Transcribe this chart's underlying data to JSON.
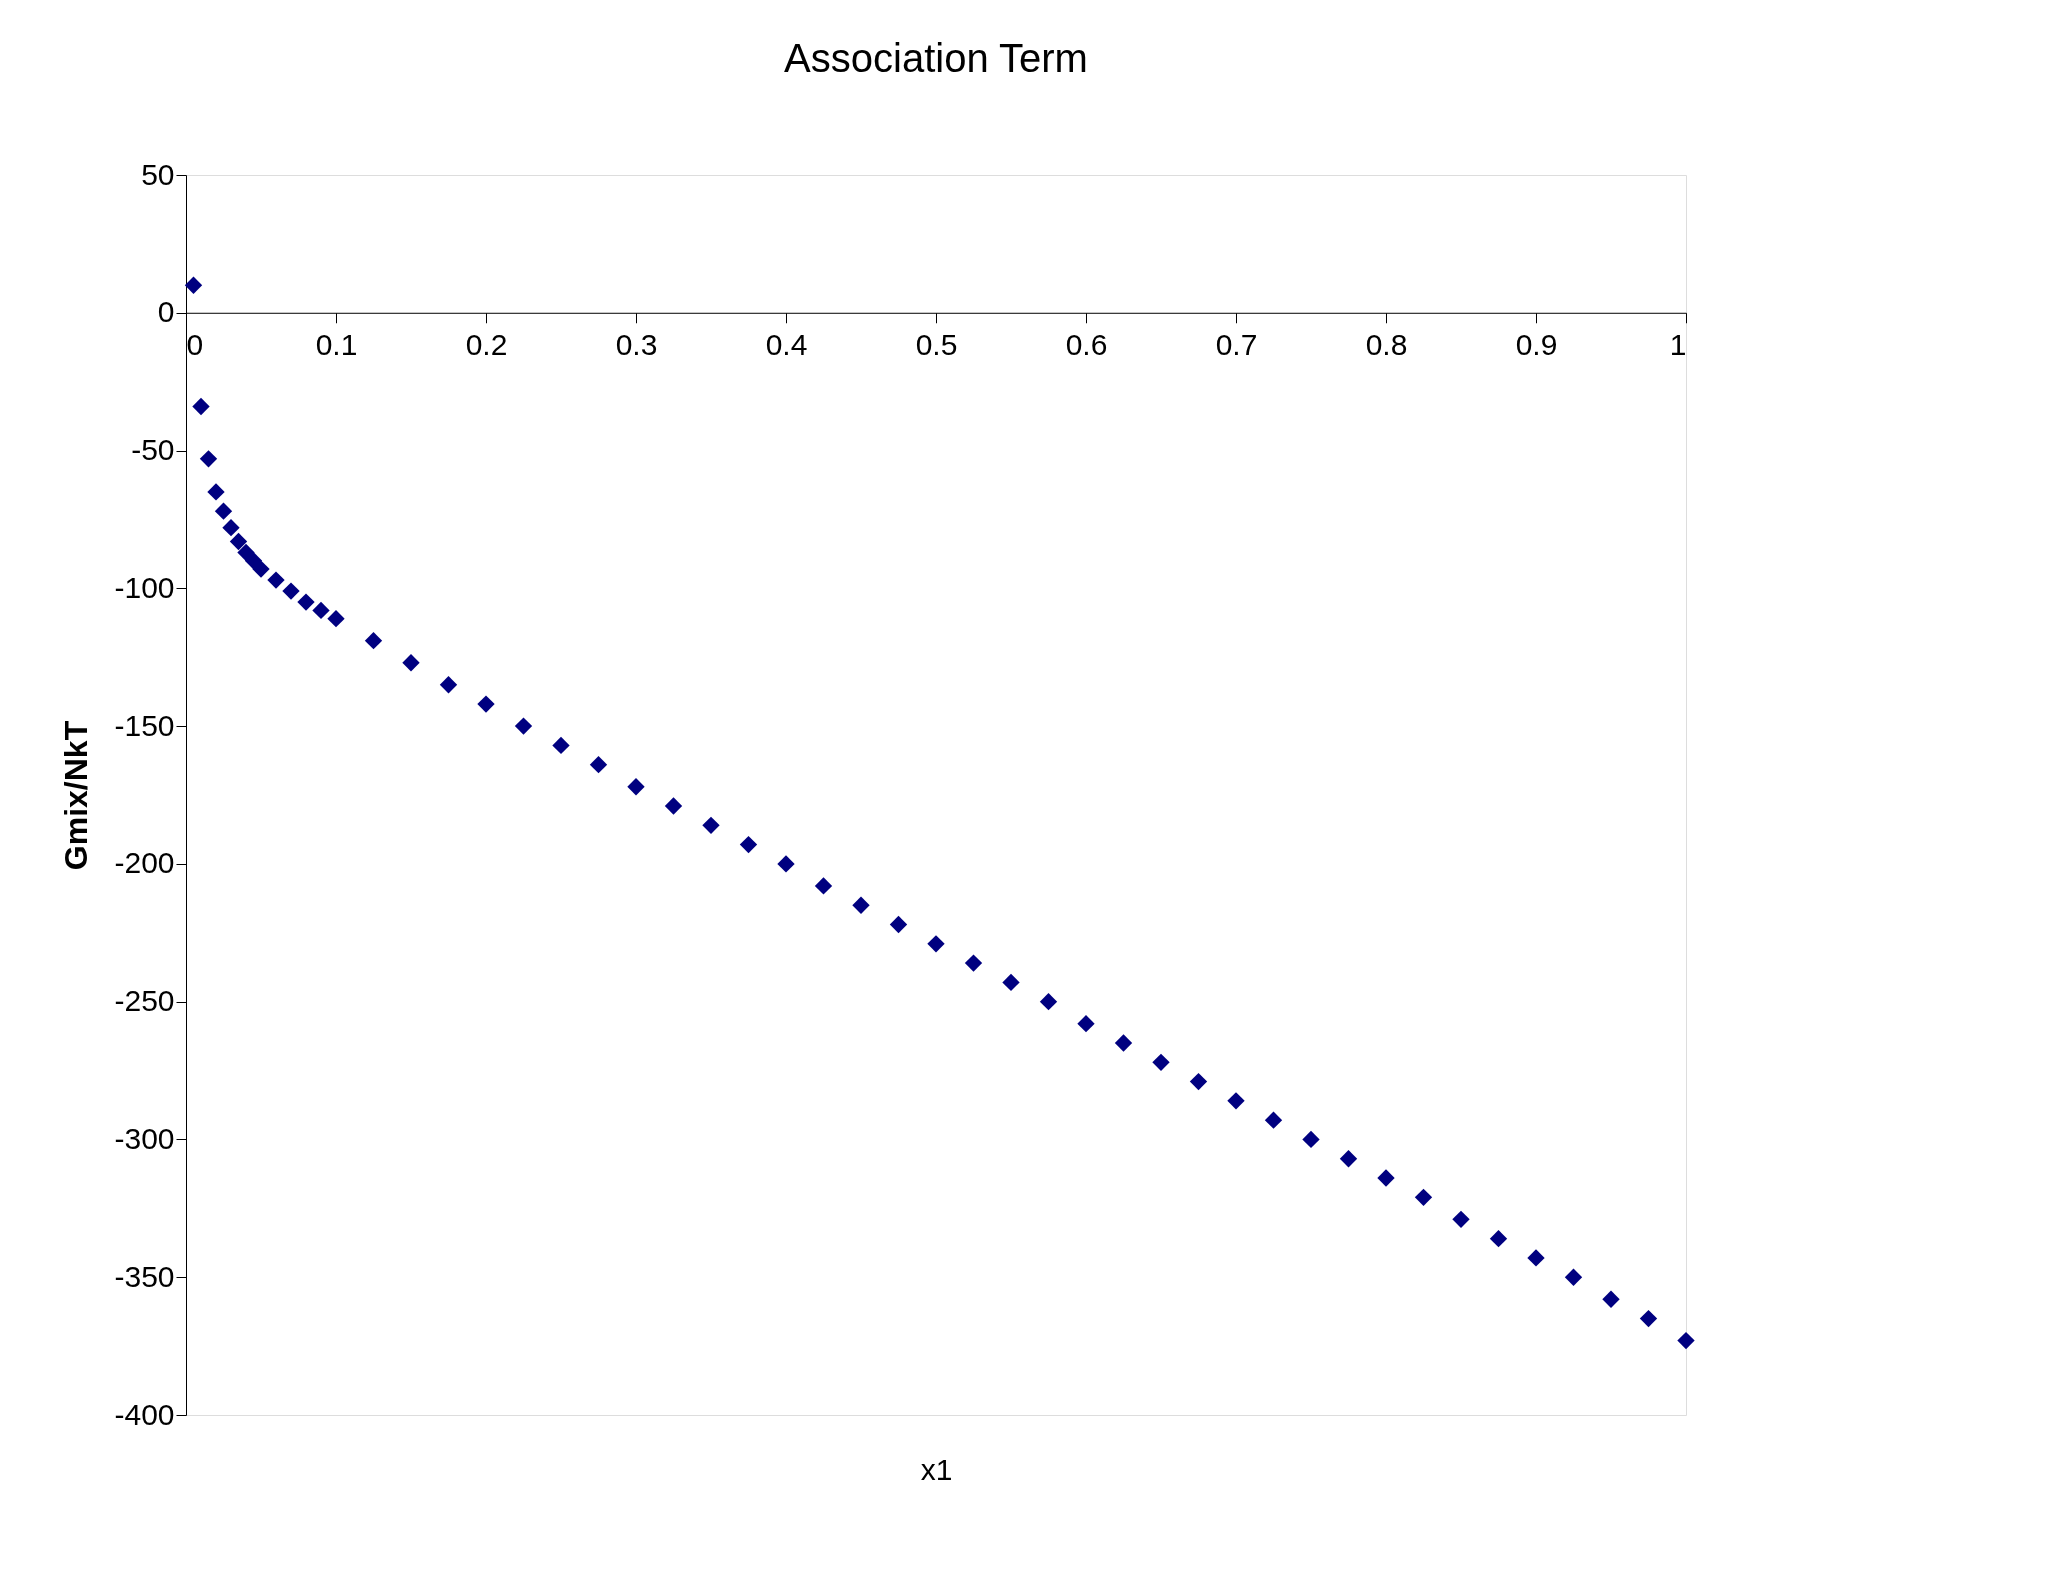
{
  "chart_data": {
    "type": "scatter",
    "title": "Association Term",
    "xlabel": "x1",
    "ylabel": "Gmix/NkT",
    "x": [
      0.005,
      0.01,
      0.015,
      0.02,
      0.025,
      0.03,
      0.035,
      0.04,
      0.045,
      0.05,
      0.06,
      0.07,
      0.08,
      0.09,
      0.1,
      0.125,
      0.15,
      0.175,
      0.2,
      0.225,
      0.25,
      0.275,
      0.3,
      0.325,
      0.35,
      0.375,
      0.4,
      0.425,
      0.45,
      0.475,
      0.5,
      0.525,
      0.55,
      0.575,
      0.6,
      0.625,
      0.65,
      0.675,
      0.7,
      0.725,
      0.75,
      0.775,
      0.8,
      0.825,
      0.85,
      0.875,
      0.9,
      0.925,
      0.95,
      0.975,
      1.0
    ],
    "series": [
      {
        "color": "#000080",
        "values": [
          10,
          -34,
          -53,
          -65,
          -72,
          -78,
          -83,
          -87,
          -90,
          -93,
          -97,
          -101,
          -105,
          -108,
          -111,
          -119,
          -127,
          -135,
          -142,
          -150,
          -157,
          -164,
          -172,
          -179,
          -186,
          -193,
          -200,
          -208,
          -215,
          -222,
          -229,
          -236,
          -243,
          -250,
          -258,
          -265,
          -272,
          -279,
          -286,
          -293,
          -300,
          -307,
          -314,
          -321,
          -329,
          -336,
          -343,
          -350,
          -358,
          -365,
          -373
        ]
      }
    ],
    "marker": "diamond",
    "grid": false,
    "legend": false,
    "xlim": [
      0,
      1
    ],
    "xticks": [
      0,
      0.1,
      0.2,
      0.3,
      0.4,
      0.5,
      0.6,
      0.7,
      0.8,
      0.9,
      1
    ],
    "ylim": [
      -400,
      50
    ],
    "yticks": [
      -400,
      -350,
      -300,
      -250,
      -200,
      -150,
      -100,
      -50,
      0,
      50
    ]
  }
}
